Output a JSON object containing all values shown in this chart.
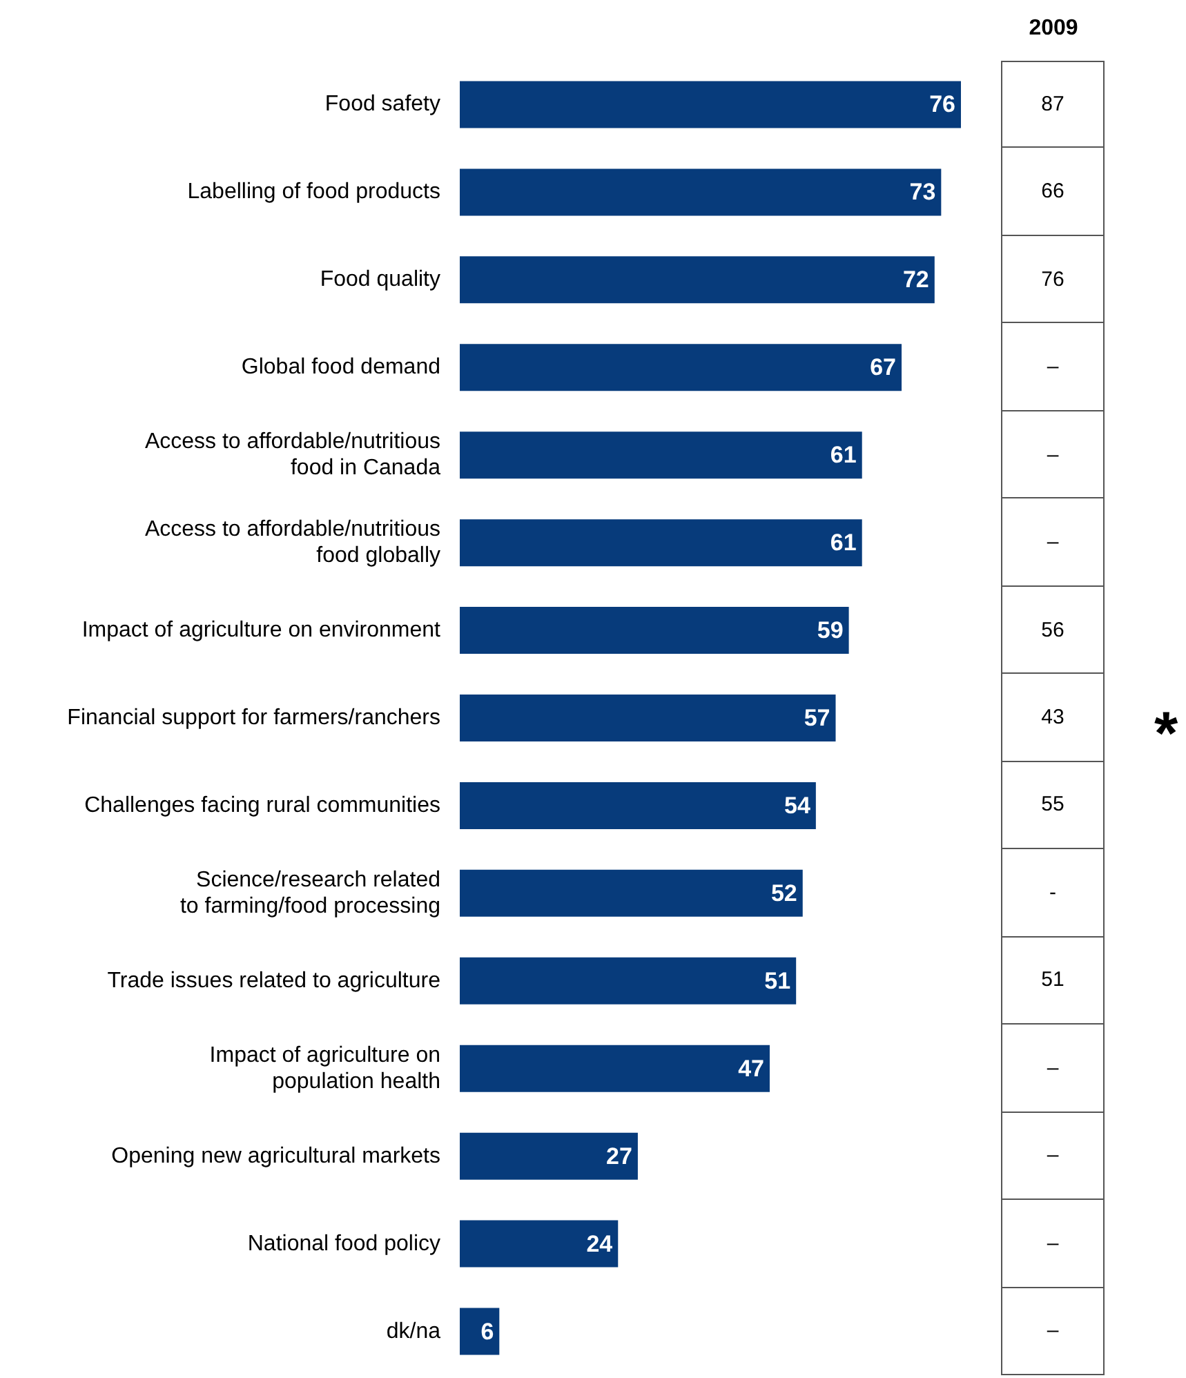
{
  "chart_data": [
    {
      "type": "bar",
      "orientation": "horizontal",
      "categories": [
        "Food safety",
        "Labelling of food products",
        "Food quality",
        "Global food demand",
        "Access to affordable/nutritious\nfood in Canada",
        "Access to affordable/nutritious\nfood globally",
        "Impact of agriculture on environment",
        "Financial support for farmers/ranchers",
        "Challenges facing rural communities",
        "Science/research related\nto farming/food processing",
        "Trade issues related to agriculture",
        "Impact of agriculture on\npopulation health",
        "Opening new agricultural markets",
        "National food policy",
        "dk/na"
      ],
      "values": [
        76,
        73,
        72,
        67,
        61,
        61,
        59,
        57,
        54,
        52,
        51,
        47,
        27,
        24,
        6
      ],
      "color": "#073b7b",
      "data_labels": true,
      "annotations": [
        "*"
      ]
    },
    {
      "type": "other",
      "title": "2009",
      "annotations": [
        "87",
        "66",
        "76",
        "–",
        "–",
        "–",
        "56",
        "43",
        "55",
        "-",
        "51",
        "–",
        "–",
        "–",
        "–"
      ]
    }
  ]
}
